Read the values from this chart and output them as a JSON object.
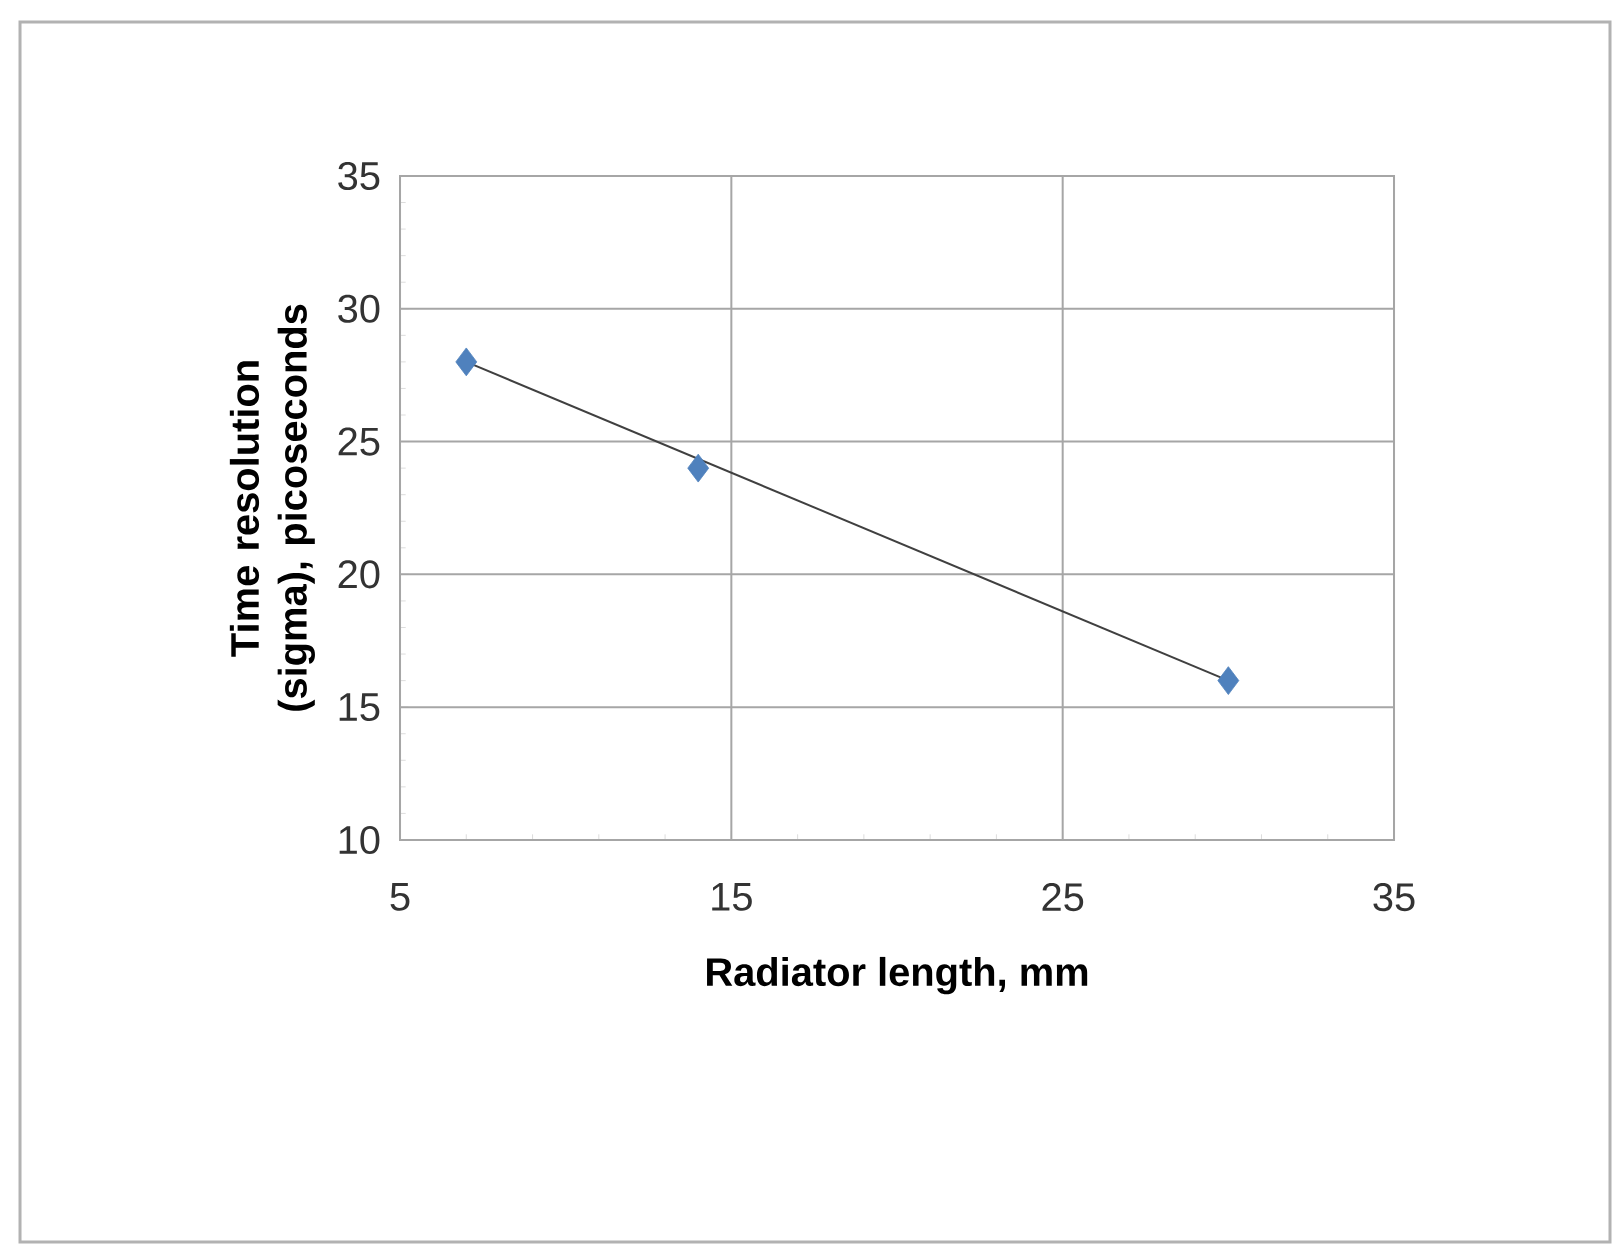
{
  "chart_data": {
    "type": "scatter",
    "xlabel": "Radiator length, mm",
    "ylabel": "Time resolution (sigma), picoseconds",
    "xlim": [
      5,
      35
    ],
    "ylim": [
      10,
      35
    ],
    "xticks": [
      5,
      15,
      25,
      35
    ],
    "yticks": [
      10,
      15,
      20,
      25,
      30,
      35
    ],
    "grid": true,
    "marker": "diamond",
    "series": [
      {
        "color": "#4f81bd",
        "x": [
          7,
          14,
          30
        ],
        "values": [
          28,
          24,
          16
        ]
      },
      {
        "type": "line",
        "color": "#404040",
        "marker": "none",
        "x": [
          7,
          30
        ],
        "values": [
          28,
          16
        ]
      }
    ]
  }
}
